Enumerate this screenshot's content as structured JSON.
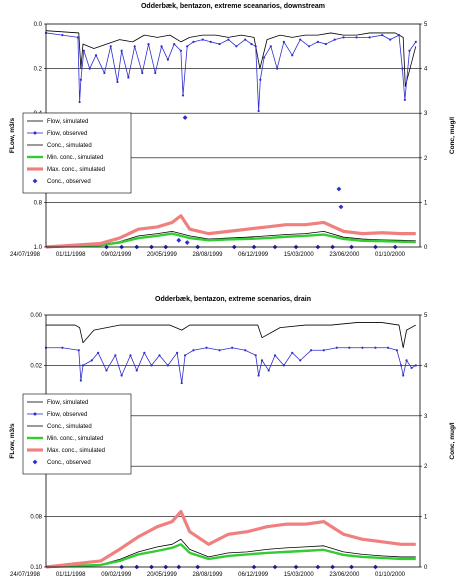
{
  "chart_data": [
    {
      "type": "line",
      "title": "Odderbæk, bentazon, extreme sceanarios, downstream",
      "ylabel_left": "FLow, m3/s",
      "ylabel_right": "Conc, mug/l",
      "y_left_ticks": [
        "0.0",
        "0.2",
        "0.4",
        "0.6",
        "0.8",
        "1.0"
      ],
      "y_right_ticks": [
        "0",
        "1",
        "2",
        "3",
        "4",
        "5"
      ],
      "ylim_left": [
        1.0,
        0.0
      ],
      "ylim_right": [
        0,
        5
      ],
      "x_ticks": [
        "24/07/1998",
        "01/11/1998",
        "09/02/1999",
        "20/05/1999",
        "28/08/1999",
        "06/12/1999",
        "15/03/2000",
        "23/06/2000",
        "01/10/2000"
      ],
      "legend": [
        "Flow, simulated",
        "Flow, observed",
        "Conc., simulated",
        "Min. conc., simulated",
        "Max. conc., simulated",
        "Conc., observed"
      ],
      "series": [
        {
          "name": "Flow, simulated",
          "color": "#000000",
          "x": [
            "1998-07-24",
            "1998-09-01",
            "1998-10-10",
            "1998-10-15",
            "1998-10-20",
            "1998-11-15",
            "1998-12-15",
            "1999-01-15",
            "1999-02-15",
            "1999-03-15",
            "1999-04-15",
            "1999-05-15",
            "1999-06-10",
            "1999-07-01",
            "1999-08-01",
            "1999-09-01",
            "1999-10-01",
            "1999-11-01",
            "1999-12-01",
            "1999-12-15",
            "2000-01-01",
            "2000-02-01",
            "2000-03-01",
            "2000-04-01",
            "2000-05-01",
            "2000-06-01",
            "2000-07-01",
            "2000-08-01",
            "2000-09-01",
            "2000-10-01",
            "2000-11-01",
            "2000-11-20",
            "2000-11-25",
            "2000-12-20"
          ],
          "y": [
            0.03,
            0.035,
            0.04,
            0.2,
            0.09,
            0.11,
            0.09,
            0.07,
            0.08,
            0.05,
            0.06,
            0.05,
            0.08,
            0.06,
            0.05,
            0.05,
            0.06,
            0.05,
            0.06,
            0.2,
            0.07,
            0.05,
            0.06,
            0.05,
            0.05,
            0.04,
            0.05,
            0.05,
            0.04,
            0.04,
            0.04,
            0.06,
            0.28,
            0.1
          ]
        },
        {
          "name": "Flow, observed",
          "color": "#2e2ecf",
          "x": [
            "1998-07-24",
            "1998-09-01",
            "1998-10-08",
            "1998-10-12",
            "1998-10-15",
            "1998-10-22",
            "1998-11-05",
            "1998-11-20",
            "1998-12-10",
            "1998-12-25",
            "1999-01-10",
            "1999-01-20",
            "1999-02-05",
            "1999-02-20",
            "1999-03-10",
            "1999-03-25",
            "1999-04-10",
            "1999-04-25",
            "1999-05-10",
            "1999-05-25",
            "1999-06-10",
            "1999-06-15",
            "1999-06-25",
            "1999-07-10",
            "1999-08-01",
            "1999-08-20",
            "1999-09-10",
            "1999-10-01",
            "1999-10-20",
            "1999-11-10",
            "1999-11-25",
            "1999-12-05",
            "1999-12-12",
            "1999-12-16",
            "1999-12-25",
            "2000-01-10",
            "2000-01-25",
            "2000-02-10",
            "2000-03-01",
            "2000-03-20",
            "2000-04-10",
            "2000-05-01",
            "2000-05-20",
            "2000-06-10",
            "2000-07-01",
            "2000-08-01",
            "2000-09-01",
            "2000-10-01",
            "2000-10-20",
            "2000-11-10",
            "2000-11-18",
            "2000-11-24",
            "2000-12-05",
            "2000-12-20"
          ],
          "y": [
            0.04,
            0.05,
            0.06,
            0.35,
            0.25,
            0.12,
            0.2,
            0.14,
            0.22,
            0.1,
            0.26,
            0.12,
            0.24,
            0.1,
            0.22,
            0.09,
            0.22,
            0.1,
            0.16,
            0.09,
            0.12,
            0.32,
            0.1,
            0.08,
            0.07,
            0.08,
            0.09,
            0.07,
            0.1,
            0.07,
            0.09,
            0.1,
            0.39,
            0.25,
            0.15,
            0.1,
            0.2,
            0.08,
            0.14,
            0.07,
            0.1,
            0.08,
            0.09,
            0.07,
            0.06,
            0.06,
            0.06,
            0.05,
            0.07,
            0.05,
            0.2,
            0.34,
            0.12,
            0.08
          ]
        },
        {
          "name": "Conc., simulated",
          "color": "#000000",
          "x": [
            "1998-07-24",
            "1998-12-01",
            "1999-01-15",
            "1999-03-01",
            "1999-04-15",
            "1999-05-20",
            "1999-07-01",
            "1999-08-15",
            "1999-10-01",
            "1999-11-15",
            "2000-01-01",
            "2000-02-15",
            "2000-04-01",
            "2000-05-15",
            "2000-07-01",
            "2000-08-15",
            "2000-10-01",
            "2000-11-15",
            "2000-12-20"
          ],
          "y": [
            0,
            0.05,
            0.12,
            0.25,
            0.3,
            0.35,
            0.25,
            0.18,
            0.2,
            0.22,
            0.25,
            0.28,
            0.3,
            0.35,
            0.22,
            0.18,
            0.16,
            0.15,
            0.14
          ]
        },
        {
          "name": "Min. conc., simulated",
          "color": "#33cc33",
          "x": [
            "1998-07-24",
            "1998-12-01",
            "1999-01-15",
            "1999-03-01",
            "1999-04-15",
            "1999-05-20",
            "1999-07-01",
            "1999-08-15",
            "1999-10-01",
            "1999-11-15",
            "2000-01-01",
            "2000-02-15",
            "2000-04-01",
            "2000-05-15",
            "2000-07-01",
            "2000-08-15",
            "2000-10-01",
            "2000-11-15",
            "2000-12-20"
          ],
          "y": [
            0,
            0.04,
            0.1,
            0.2,
            0.25,
            0.3,
            0.2,
            0.15,
            0.17,
            0.18,
            0.2,
            0.23,
            0.25,
            0.28,
            0.18,
            0.14,
            0.13,
            0.12,
            0.11
          ]
        },
        {
          "name": "Max. conc., simulated",
          "color": "#f08080",
          "x": [
            "1998-07-24",
            "1998-12-01",
            "1999-01-15",
            "1999-03-01",
            "1999-04-15",
            "1999-05-20",
            "1999-06-10",
            "1999-07-01",
            "1999-08-15",
            "1999-10-01",
            "1999-11-15",
            "2000-01-01",
            "2000-02-15",
            "2000-04-01",
            "2000-05-15",
            "2000-07-01",
            "2000-08-15",
            "2000-10-01",
            "2000-11-15",
            "2000-12-20"
          ],
          "y": [
            0,
            0.08,
            0.2,
            0.4,
            0.45,
            0.55,
            0.7,
            0.4,
            0.3,
            0.35,
            0.4,
            0.45,
            0.5,
            0.5,
            0.55,
            0.35,
            0.3,
            0.32,
            0.3,
            0.3
          ]
        },
        {
          "name": "Conc., observed",
          "color": "#2e2ecf",
          "type": "scatter",
          "x": [
            "1998-12-15",
            "1999-01-20",
            "1999-02-25",
            "1999-04-01",
            "1999-05-05",
            "1999-06-05",
            "1999-06-25",
            "1999-07-20",
            "1999-10-15",
            "1999-12-01",
            "2000-01-20",
            "2000-03-10",
            "2000-05-01",
            "2000-06-05",
            "2000-06-20",
            "2000-06-25",
            "2000-07-20",
            "2000-09-15",
            "2000-11-01"
          ],
          "y": [
            0,
            0,
            0,
            0,
            0,
            0.15,
            0.1,
            0,
            0,
            0,
            0,
            0,
            0,
            0,
            1.3,
            0.9,
            0,
            0,
            0
          ]
        },
        {
          "name": "Conc., observed (outlier)",
          "color": "#2e2ecf",
          "type": "scatter",
          "x": [
            "1999-06-20"
          ],
          "y": [
            2.9
          ]
        }
      ]
    },
    {
      "type": "line",
      "title": "Odderbæk, bentazon, extreme scenarios, drain",
      "ylabel_left": "FLow, m3/s",
      "ylabel_right": "Conc, mug/l",
      "y_left_ticks": [
        "0.00",
        "0.02",
        "0.04",
        "0.06",
        "0.08",
        "0.10"
      ],
      "y_right_ticks": [
        "0",
        "1",
        "2",
        "3",
        "4",
        "5"
      ],
      "ylim_left": [
        0.1,
        0.0
      ],
      "ylim_right": [
        0,
        5
      ],
      "x_ticks": [
        "24/07/1998",
        "01/11/1998",
        "09/02/1999",
        "20/05/1999",
        "28/08/1999",
        "06/12/1999",
        "15/03/2000",
        "23/06/2000",
        "01/10/2000"
      ],
      "legend": [
        "Flow, simulated",
        "Flow, observed",
        "Conc., simulated",
        "Min. conc., simulated",
        "Max. conc., simulated",
        "Conc., observed"
      ],
      "series": [
        {
          "name": "Flow, simulated",
          "color": "#000000",
          "x": [
            "1998-07-24",
            "1998-10-01",
            "1998-10-12",
            "1998-10-20",
            "1998-11-15",
            "1999-01-15",
            "1999-03-15",
            "1999-05-15",
            "1999-06-12",
            "1999-07-01",
            "1999-09-01",
            "1999-11-01",
            "1999-12-10",
            "1999-12-20",
            "2000-02-01",
            "2000-04-01",
            "2000-06-01",
            "2000-08-01",
            "2000-10-01",
            "2000-11-10",
            "2000-11-20",
            "2000-11-28",
            "2000-12-20"
          ],
          "y": [
            0.004,
            0.004,
            0.005,
            0.011,
            0.006,
            0.004,
            0.004,
            0.004,
            0.006,
            0.004,
            0.004,
            0.004,
            0.004,
            0.009,
            0.005,
            0.004,
            0.004,
            0.003,
            0.003,
            0.004,
            0.013,
            0.006,
            0.004
          ]
        },
        {
          "name": "Flow, observed",
          "color": "#2e2ecf",
          "x": [
            "1998-07-24",
            "1998-09-01",
            "1998-10-10",
            "1998-10-15",
            "1998-10-20",
            "1998-11-10",
            "1998-11-25",
            "1998-12-15",
            "1999-01-05",
            "1999-01-20",
            "1999-02-10",
            "1999-02-25",
            "1999-03-15",
            "1999-04-01",
            "1999-04-20",
            "1999-05-10",
            "1999-06-01",
            "1999-06-12",
            "1999-06-20",
            "1999-07-10",
            "1999-08-10",
            "1999-09-10",
            "1999-10-10",
            "1999-11-10",
            "1999-12-05",
            "1999-12-12",
            "1999-12-20",
            "2000-01-05",
            "2000-01-20",
            "2000-02-10",
            "2000-03-01",
            "2000-03-20",
            "2000-04-15",
            "2000-05-15",
            "2000-06-15",
            "2000-07-15",
            "2000-08-15",
            "2000-09-15",
            "2000-10-15",
            "2000-11-05",
            "2000-11-15",
            "2000-11-20",
            "2000-11-28",
            "2000-12-10",
            "2000-12-20"
          ],
          "y": [
            0.013,
            0.013,
            0.014,
            0.026,
            0.02,
            0.018,
            0.015,
            0.022,
            0.016,
            0.024,
            0.016,
            0.022,
            0.015,
            0.02,
            0.016,
            0.02,
            0.015,
            0.027,
            0.016,
            0.014,
            0.013,
            0.014,
            0.013,
            0.014,
            0.016,
            0.024,
            0.018,
            0.022,
            0.016,
            0.02,
            0.015,
            0.018,
            0.014,
            0.014,
            0.013,
            0.013,
            0.013,
            0.013,
            0.013,
            0.014,
            0.02,
            0.024,
            0.018,
            0.021,
            0.02
          ]
        },
        {
          "name": "Conc., simulated",
          "color": "#000000",
          "x": [
            "1998-07-24",
            "1998-12-01",
            "1999-01-15",
            "1999-03-01",
            "1999-04-15",
            "1999-05-20",
            "1999-06-10",
            "1999-07-01",
            "1999-08-15",
            "1999-10-01",
            "1999-11-15",
            "2000-01-01",
            "2000-02-15",
            "2000-04-01",
            "2000-05-15",
            "2000-07-01",
            "2000-08-15",
            "2000-10-01",
            "2000-11-15",
            "2000-12-20"
          ],
          "y": [
            0,
            0.05,
            0.15,
            0.3,
            0.4,
            0.45,
            0.55,
            0.35,
            0.2,
            0.28,
            0.3,
            0.35,
            0.38,
            0.4,
            0.42,
            0.3,
            0.25,
            0.22,
            0.2,
            0.2
          ]
        },
        {
          "name": "Min. conc., simulated",
          "color": "#33cc33",
          "x": [
            "1998-07-24",
            "1998-12-01",
            "1999-01-15",
            "1999-03-01",
            "1999-04-15",
            "1999-05-20",
            "1999-06-10",
            "1999-07-01",
            "1999-08-15",
            "1999-10-01",
            "1999-11-15",
            "2000-01-01",
            "2000-02-15",
            "2000-04-01",
            "2000-05-15",
            "2000-07-01",
            "2000-08-15",
            "2000-10-01",
            "2000-11-15",
            "2000-12-20"
          ],
          "y": [
            0,
            0.04,
            0.12,
            0.25,
            0.32,
            0.38,
            0.45,
            0.28,
            0.16,
            0.22,
            0.25,
            0.28,
            0.3,
            0.32,
            0.34,
            0.24,
            0.2,
            0.18,
            0.16,
            0.16
          ]
        },
        {
          "name": "Max. conc., simulated",
          "color": "#f08080",
          "x": [
            "1998-07-24",
            "1998-12-01",
            "1999-01-15",
            "1999-03-01",
            "1999-04-15",
            "1999-05-20",
            "1999-06-10",
            "1999-07-01",
            "1999-08-15",
            "1999-10-01",
            "1999-11-15",
            "2000-01-01",
            "2000-02-15",
            "2000-04-01",
            "2000-05-15",
            "2000-07-01",
            "2000-08-15",
            "2000-10-01",
            "2000-11-15",
            "2000-12-20"
          ],
          "y": [
            0,
            0.12,
            0.35,
            0.6,
            0.8,
            0.9,
            1.1,
            0.7,
            0.45,
            0.65,
            0.7,
            0.8,
            0.85,
            0.85,
            0.9,
            0.65,
            0.55,
            0.5,
            0.45,
            0.45
          ]
        },
        {
          "name": "Conc., observed",
          "color": "#2e2ecf",
          "type": "scatter",
          "x": [
            "1999-01-20",
            "1999-02-25",
            "1999-04-01",
            "1999-05-05",
            "1999-06-05",
            "1999-07-20",
            "1999-12-01",
            "2000-01-20",
            "2000-03-10",
            "2000-05-01",
            "2000-06-05",
            "2000-07-20",
            "2000-09-15"
          ],
          "y": [
            0,
            0,
            0,
            0,
            0,
            0,
            0,
            0,
            0,
            0,
            0,
            0,
            0
          ]
        }
      ]
    }
  ]
}
